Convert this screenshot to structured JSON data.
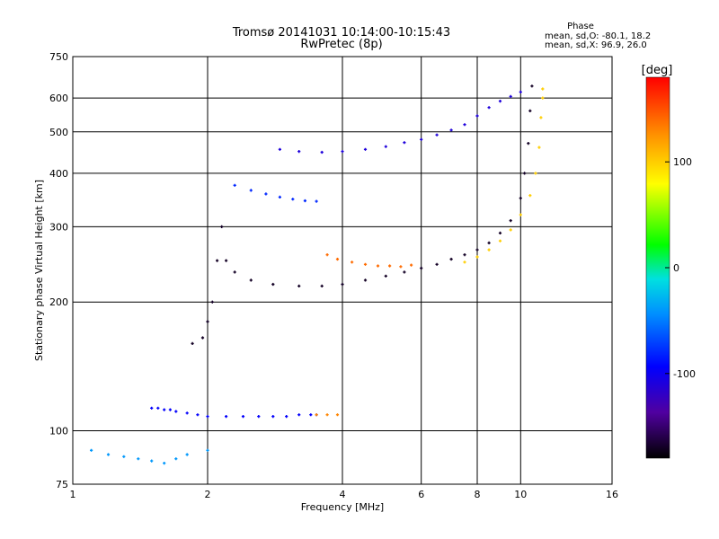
{
  "chart_data": {
    "type": "scatter",
    "title": "Tromsø 20141031 10:14:00-10:15:43",
    "subtitle": "RwPretec (8p)",
    "phase_box": {
      "heading": "Phase",
      "line1": "mean, sd,O: -80.1, 18.2",
      "line2": "mean, sd,X:  96.9, 26.0"
    },
    "xlabel": "Frequency [MHz]",
    "ylabel": "Stationary phase Virtual Height [km]",
    "xscale": "log",
    "yscale": "log",
    "xlim": [
      1,
      16
    ],
    "ylim": [
      75,
      750
    ],
    "grid": true,
    "x_ticks": [
      1,
      2,
      4,
      6,
      8,
      10,
      16
    ],
    "x_tick_labels": [
      "1",
      "2",
      "4",
      "6",
      "8",
      "10",
      "16"
    ],
    "y_ticks": [
      75,
      100,
      200,
      300,
      400,
      500,
      600,
      750
    ],
    "y_tick_labels": [
      "75",
      "100",
      "200",
      "300",
      "400",
      "500",
      "600",
      "750"
    ],
    "colorbar": {
      "title": "[deg]",
      "range": [
        -180,
        180
      ],
      "ticks": [
        100,
        0,
        -100
      ],
      "tick_labels": [
        "100",
        "0",
        "-100"
      ]
    },
    "series": [
      {
        "color_phase": -95,
        "points": [
          [
            1.5,
            113
          ],
          [
            1.55,
            113
          ],
          [
            1.6,
            112
          ],
          [
            1.65,
            112
          ],
          [
            1.7,
            111
          ],
          [
            1.8,
            110
          ],
          [
            1.9,
            109
          ],
          [
            2.0,
            108
          ],
          [
            2.2,
            108
          ],
          [
            2.4,
            108
          ],
          [
            2.6,
            108
          ],
          [
            2.8,
            108
          ],
          [
            3.0,
            108
          ],
          [
            3.2,
            109
          ],
          [
            3.4,
            109
          ],
          [
            3.5,
            109
          ]
        ]
      },
      {
        "color_phase": -170,
        "points": [
          [
            1.85,
            160
          ],
          [
            1.95,
            165
          ],
          [
            2.0,
            180
          ],
          [
            2.05,
            200
          ],
          [
            2.1,
            250
          ],
          [
            2.15,
            300
          ],
          [
            2.2,
            250
          ],
          [
            2.3,
            235
          ],
          [
            2.5,
            225
          ],
          [
            2.8,
            220
          ],
          [
            3.2,
            218
          ],
          [
            3.6,
            218
          ],
          [
            4.0,
            220
          ],
          [
            4.5,
            225
          ],
          [
            5.0,
            230
          ],
          [
            5.5,
            235
          ],
          [
            6.0,
            240
          ],
          [
            6.5,
            245
          ],
          [
            7.0,
            252
          ],
          [
            7.5,
            258
          ],
          [
            8.0,
            265
          ],
          [
            8.5,
            275
          ],
          [
            9.0,
            290
          ],
          [
            9.5,
            310
          ],
          [
            10.0,
            350
          ],
          [
            10.2,
            400
          ],
          [
            10.4,
            470
          ],
          [
            10.5,
            560
          ],
          [
            10.6,
            640
          ]
        ]
      },
      {
        "color_phase": 100,
        "points": [
          [
            7.5,
            248
          ],
          [
            8.0,
            255
          ],
          [
            8.5,
            265
          ],
          [
            9.0,
            278
          ],
          [
            9.5,
            295
          ],
          [
            10.0,
            320
          ],
          [
            10.5,
            355
          ],
          [
            10.8,
            400
          ],
          [
            11.0,
            460
          ],
          [
            11.1,
            540
          ],
          [
            11.2,
            600
          ],
          [
            11.2,
            630
          ]
        ]
      },
      {
        "color_phase": 140,
        "points": [
          [
            3.7,
            258
          ],
          [
            3.9,
            252
          ],
          [
            4.2,
            248
          ],
          [
            4.5,
            245
          ],
          [
            4.8,
            243
          ],
          [
            5.1,
            243
          ],
          [
            5.4,
            242
          ],
          [
            5.7,
            244
          ]
        ]
      },
      {
        "color_phase": -110,
        "points": [
          [
            2.9,
            455
          ],
          [
            3.2,
            450
          ],
          [
            3.6,
            448
          ],
          [
            4.0,
            450
          ],
          [
            4.5,
            455
          ],
          [
            5.0,
            462
          ],
          [
            5.5,
            472
          ],
          [
            6.0,
            480
          ],
          [
            6.5,
            492
          ],
          [
            7.0,
            505
          ],
          [
            7.5,
            520
          ],
          [
            8.0,
            545
          ],
          [
            8.5,
            570
          ],
          [
            9.0,
            590
          ],
          [
            9.5,
            605
          ],
          [
            10.0,
            620
          ]
        ]
      },
      {
        "color_phase": -80,
        "points": [
          [
            2.3,
            375
          ],
          [
            2.5,
            365
          ],
          [
            2.7,
            358
          ],
          [
            2.9,
            352
          ],
          [
            3.1,
            348
          ],
          [
            3.3,
            345
          ],
          [
            3.5,
            344
          ]
        ]
      },
      {
        "color_phase": -40,
        "points": [
          [
            1.1,
            90
          ],
          [
            1.2,
            88
          ],
          [
            1.3,
            87
          ],
          [
            1.4,
            86
          ],
          [
            1.5,
            85
          ],
          [
            1.6,
            84
          ],
          [
            1.7,
            86
          ],
          [
            1.8,
            88
          ],
          [
            2.0,
            90
          ]
        ]
      },
      {
        "color_phase": 130,
        "points": [
          [
            3.5,
            109
          ],
          [
            3.7,
            109
          ],
          [
            3.9,
            109
          ]
        ]
      }
    ]
  }
}
